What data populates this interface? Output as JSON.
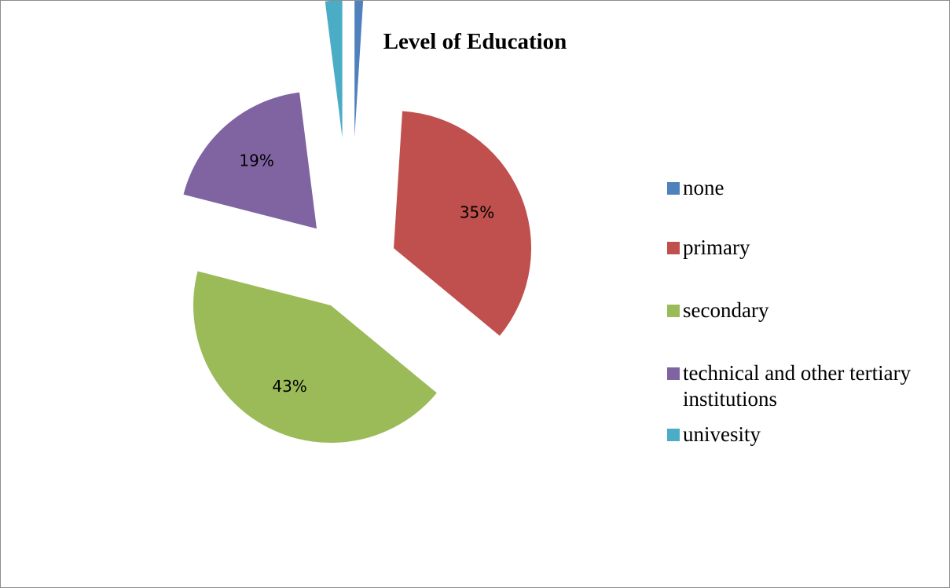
{
  "chart_data": {
    "type": "pie",
    "title": "Level of Education",
    "categories": [
      "none",
      "primary",
      "secondary",
      "technical and other tertiary institutions",
      "univesity"
    ],
    "values": [
      1,
      35,
      43,
      19,
      2
    ],
    "labels": [
      "1%",
      "35%",
      "43%",
      "19%",
      "2%"
    ],
    "colors": [
      "#4f81bd",
      "#c0504d",
      "#9bbb59",
      "#8064a2",
      "#4bacc6"
    ],
    "exploded": true,
    "legend_position": "right"
  }
}
